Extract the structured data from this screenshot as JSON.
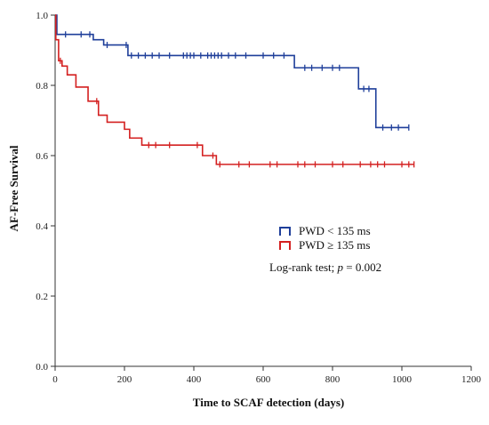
{
  "chart_data": {
    "type": "line",
    "subtype": "kaplan-meier-step",
    "title": "",
    "xlabel": "Time to SCAF detection (days)",
    "ylabel": "AF-Free Survival",
    "xlim": [
      0,
      1200
    ],
    "ylim": [
      0.0,
      1.0
    ],
    "x_ticks": [
      "0",
      "200",
      "400",
      "600",
      "800",
      "1000",
      "1200"
    ],
    "y_ticks": [
      "0.0",
      "0.2",
      "0.4",
      "0.6",
      "0.8",
      "1.0"
    ],
    "grid": false,
    "legend_position": "middle-right",
    "series": [
      {
        "name": "PWD < 135 ms",
        "color": "#1f3f9a",
        "steps": [
          {
            "x": 0,
            "y": 1.0
          },
          {
            "x": 5,
            "y": 0.945
          },
          {
            "x": 110,
            "y": 0.93
          },
          {
            "x": 140,
            "y": 0.915
          },
          {
            "x": 210,
            "y": 0.885
          },
          {
            "x": 690,
            "y": 0.85
          },
          {
            "x": 875,
            "y": 0.79
          },
          {
            "x": 925,
            "y": 0.68
          },
          {
            "x": 1020,
            "y": 0.68
          }
        ],
        "censored": [
          {
            "x": 30,
            "y": 0.945
          },
          {
            "x": 75,
            "y": 0.945
          },
          {
            "x": 100,
            "y": 0.945
          },
          {
            "x": 150,
            "y": 0.915
          },
          {
            "x": 205,
            "y": 0.915
          },
          {
            "x": 220,
            "y": 0.885
          },
          {
            "x": 240,
            "y": 0.885
          },
          {
            "x": 260,
            "y": 0.885
          },
          {
            "x": 280,
            "y": 0.885
          },
          {
            "x": 300,
            "y": 0.885
          },
          {
            "x": 330,
            "y": 0.885
          },
          {
            "x": 370,
            "y": 0.885
          },
          {
            "x": 380,
            "y": 0.885
          },
          {
            "x": 390,
            "y": 0.885
          },
          {
            "x": 400,
            "y": 0.885
          },
          {
            "x": 420,
            "y": 0.885
          },
          {
            "x": 440,
            "y": 0.885
          },
          {
            "x": 450,
            "y": 0.885
          },
          {
            "x": 460,
            "y": 0.885
          },
          {
            "x": 470,
            "y": 0.885
          },
          {
            "x": 480,
            "y": 0.885
          },
          {
            "x": 500,
            "y": 0.885
          },
          {
            "x": 520,
            "y": 0.885
          },
          {
            "x": 550,
            "y": 0.885
          },
          {
            "x": 600,
            "y": 0.885
          },
          {
            "x": 630,
            "y": 0.885
          },
          {
            "x": 660,
            "y": 0.885
          },
          {
            "x": 720,
            "y": 0.85
          },
          {
            "x": 740,
            "y": 0.85
          },
          {
            "x": 770,
            "y": 0.85
          },
          {
            "x": 800,
            "y": 0.85
          },
          {
            "x": 820,
            "y": 0.85
          },
          {
            "x": 890,
            "y": 0.79
          },
          {
            "x": 905,
            "y": 0.79
          },
          {
            "x": 945,
            "y": 0.68
          },
          {
            "x": 970,
            "y": 0.68
          },
          {
            "x": 990,
            "y": 0.68
          },
          {
            "x": 1020,
            "y": 0.68
          }
        ]
      },
      {
        "name": "PWD ≥ 135 ms",
        "color": "#d42020",
        "steps": [
          {
            "x": 0,
            "y": 1.0
          },
          {
            "x": 2,
            "y": 0.93
          },
          {
            "x": 10,
            "y": 0.87
          },
          {
            "x": 20,
            "y": 0.855
          },
          {
            "x": 35,
            "y": 0.83
          },
          {
            "x": 60,
            "y": 0.795
          },
          {
            "x": 95,
            "y": 0.755
          },
          {
            "x": 125,
            "y": 0.715
          },
          {
            "x": 150,
            "y": 0.695
          },
          {
            "x": 200,
            "y": 0.675
          },
          {
            "x": 215,
            "y": 0.65
          },
          {
            "x": 250,
            "y": 0.63
          },
          {
            "x": 425,
            "y": 0.6
          },
          {
            "x": 465,
            "y": 0.575
          },
          {
            "x": 1035,
            "y": 0.575
          }
        ],
        "censored": [
          {
            "x": 15,
            "y": 0.87
          },
          {
            "x": 120,
            "y": 0.755
          },
          {
            "x": 270,
            "y": 0.63
          },
          {
            "x": 290,
            "y": 0.63
          },
          {
            "x": 330,
            "y": 0.63
          },
          {
            "x": 410,
            "y": 0.63
          },
          {
            "x": 455,
            "y": 0.6
          },
          {
            "x": 475,
            "y": 0.575
          },
          {
            "x": 530,
            "y": 0.575
          },
          {
            "x": 560,
            "y": 0.575
          },
          {
            "x": 620,
            "y": 0.575
          },
          {
            "x": 640,
            "y": 0.575
          },
          {
            "x": 700,
            "y": 0.575
          },
          {
            "x": 720,
            "y": 0.575
          },
          {
            "x": 750,
            "y": 0.575
          },
          {
            "x": 800,
            "y": 0.575
          },
          {
            "x": 830,
            "y": 0.575
          },
          {
            "x": 880,
            "y": 0.575
          },
          {
            "x": 910,
            "y": 0.575
          },
          {
            "x": 930,
            "y": 0.575
          },
          {
            "x": 950,
            "y": 0.575
          },
          {
            "x": 1000,
            "y": 0.575
          },
          {
            "x": 1020,
            "y": 0.575
          },
          {
            "x": 1035,
            "y": 0.575
          }
        ]
      }
    ],
    "annotation": {
      "prefix": "Log-rank test; ",
      "p_symbol": "p",
      "suffix": " = 0.002"
    }
  }
}
